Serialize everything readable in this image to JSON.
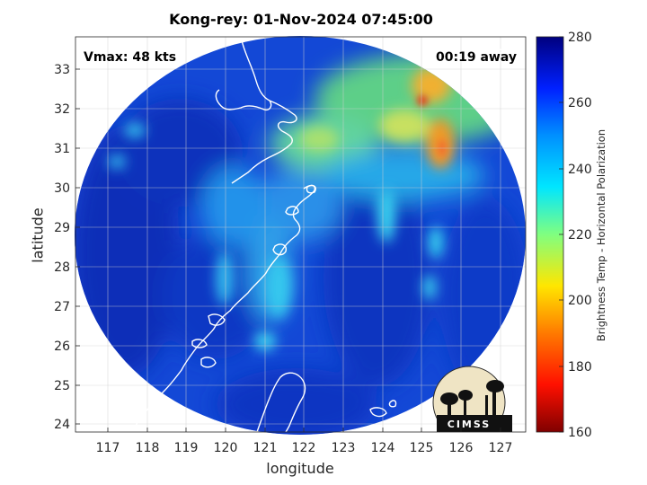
{
  "title": "Kong-rey: 01-Nov-2024 07:45:00",
  "vmax_text": "Vmax: 48 kts",
  "time_away_text": "00:19 away",
  "xlabel": "longitude",
  "ylabel": "latitude",
  "colorbar": {
    "label": "Brightness Temp - Horizontal Polarization",
    "ticks": [
      "160",
      "180",
      "200",
      "220",
      "240",
      "260",
      "280"
    ],
    "min": 160,
    "max": 280
  },
  "x_ticks": [
    "117",
    "118",
    "119",
    "120",
    "121",
    "122",
    "123",
    "124",
    "125",
    "126",
    "127"
  ],
  "y_ticks": [
    "24",
    "25",
    "26",
    "27",
    "28",
    "29",
    "30",
    "31",
    "32",
    "33"
  ],
  "map_extent": {
    "lon": [
      116.2,
      127.7
    ],
    "lat": [
      23.8,
      33.8
    ]
  },
  "logo": {
    "text": "CIMSS"
  },
  "colors": {
    "deep_blue": "#0a2fb0",
    "mid_blue": "#1a52e0",
    "cyan": "#30d8f0",
    "green_yellow": "#a0e878",
    "orange": "#f0a830",
    "coastline": "#ffffff"
  }
}
